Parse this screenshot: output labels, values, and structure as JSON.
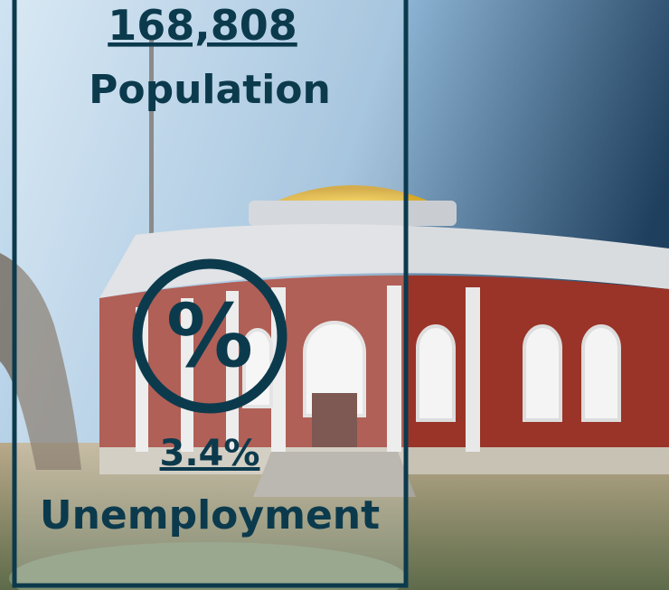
{
  "stats": [
    {
      "value": "168,808",
      "label": "Population"
    },
    {
      "value": "3.4%",
      "label": "Unemployment"
    }
  ],
  "icon": "%"
}
